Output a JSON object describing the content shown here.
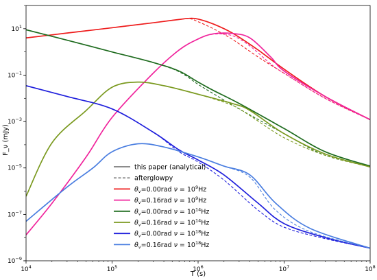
{
  "chart_data": {
    "type": "line",
    "xlabel": "T (s)",
    "ylabel": "F_ν (mJy)",
    "x_scale": "log",
    "y_scale": "log",
    "xlim": [
      10000,
      100000000
    ],
    "ylim": [
      1e-09,
      100
    ],
    "x_ticks": [
      {
        "value": 10000,
        "base": "10",
        "exp": "4"
      },
      {
        "value": 100000,
        "base": "10",
        "exp": "5"
      },
      {
        "value": 1000000,
        "base": "10",
        "exp": "6"
      },
      {
        "value": 10000000,
        "base": "10",
        "exp": "7"
      },
      {
        "value": 100000000,
        "base": "10",
        "exp": "8"
      }
    ],
    "y_ticks": [
      {
        "value": 1e-09,
        "base": "10",
        "exp": "−9"
      },
      {
        "value": 1e-07,
        "base": "10",
        "exp": "−7"
      },
      {
        "value": 1e-05,
        "base": "10",
        "exp": "−5"
      },
      {
        "value": 0.001,
        "base": "10",
        "exp": "−3"
      },
      {
        "value": 0.1,
        "base": "10",
        "exp": "−1"
      },
      {
        "value": 10,
        "base": "10",
        "exp": "1"
      }
    ],
    "grid": false,
    "legend_position": "lower-center",
    "legend_style_entries": [
      {
        "label": "this paper (analytical)",
        "dash": "solid"
      },
      {
        "label": "afterglowpy",
        "dash": "dashed"
      }
    ],
    "series": [
      {
        "name": "θv=0.00rad ν=10^9Hz",
        "legend": {
          "theta": "=0.00rad",
          "nu": "10",
          "nu_exp": "9"
        },
        "color": "#ee1c1c",
        "x": [
          10000,
          30000,
          100000,
          300000,
          600000,
          800000,
          1000000,
          1500000,
          2500000,
          5000000,
          10000000,
          30000000,
          100000000
        ],
        "solid": [
          4.0,
          6.5,
          11,
          18,
          25,
          28,
          26,
          16,
          6.5,
          1.2,
          0.18,
          0.012,
          0.0012
        ],
        "dashed": [
          4.0,
          6.5,
          11,
          18,
          25,
          27,
          20,
          10,
          3.5,
          0.6,
          0.12,
          0.01,
          0.0012
        ]
      },
      {
        "name": "θv=0.16rad ν=10^9Hz",
        "legend": {
          "theta": "=0.16rad",
          "nu": "10",
          "nu_exp": "9"
        },
        "color": "#f0249c",
        "x": [
          10000,
          20000,
          50000,
          100000,
          300000,
          600000,
          1000000,
          1500000,
          2500000,
          4000000,
          7000000,
          10000000,
          30000000,
          100000000
        ],
        "solid": [
          1.3e-08,
          3e-07,
          3e-05,
          0.0015,
          0.12,
          1.2,
          3.6,
          6.0,
          6.2,
          4.0,
          0.6,
          0.15,
          0.012,
          0.0012
        ],
        "dashed": [
          1.3e-08,
          3e-07,
          3e-05,
          0.0015,
          0.12,
          1.2,
          3.6,
          5.8,
          5.0,
          1.8,
          0.3,
          0.12,
          0.01,
          0.0012
        ]
      },
      {
        "name": "θv=0.00rad ν=10^14Hz",
        "legend": {
          "theta": "=0.00rad",
          "nu": "10",
          "nu_exp": "14"
        },
        "color": "#1e6b1e",
        "x": [
          10000,
          30000,
          100000,
          300000,
          600000,
          1000000,
          1500000,
          3000000,
          10000000,
          30000000,
          100000000
        ],
        "solid": [
          9,
          3.2,
          1.0,
          0.35,
          0.15,
          0.05,
          0.022,
          0.006,
          0.0005,
          5e-05,
          1.2e-05
        ],
        "dashed": [
          9,
          3.2,
          1.0,
          0.35,
          0.14,
          0.04,
          0.016,
          0.0035,
          0.0003,
          3.5e-05,
          1.2e-05
        ]
      },
      {
        "name": "θv=0.16rad ν=10^14Hz",
        "legend": {
          "theta": "=0.16rad",
          "nu": "10",
          "nu_exp": "14"
        },
        "color": "#7b9a20",
        "x": [
          10000,
          20000,
          50000,
          100000,
          200000,
          400000,
          1000000,
          2500000,
          4000000,
          10000000,
          30000000,
          100000000
        ],
        "solid": [
          6e-07,
          0.00012,
          0.003,
          0.03,
          0.05,
          0.035,
          0.015,
          0.006,
          0.003,
          0.0003,
          4e-05,
          1.1e-05
        ],
        "dashed": [
          6e-07,
          0.00012,
          0.003,
          0.03,
          0.05,
          0.035,
          0.015,
          0.005,
          0.0018,
          0.0002,
          3.5e-05,
          1.1e-05
        ]
      },
      {
        "name": "θv=0.00rad ν=10^18Hz",
        "legend": {
          "theta": "=0.00rad",
          "nu": "10",
          "nu_exp": "18"
        },
        "color": "#1f1fdc",
        "x": [
          10000,
          30000,
          100000,
          300000,
          600000,
          1000000,
          2000000,
          5000000,
          10000000,
          30000000,
          100000000
        ],
        "solid": [
          0.035,
          0.012,
          0.0035,
          0.00035,
          6e-05,
          2.2e-05,
          5e-06,
          3e-07,
          4e-08,
          1e-08,
          3.5e-09
        ],
        "dashed": [
          0.035,
          0.012,
          0.0035,
          0.00035,
          5e-05,
          1.8e-05,
          3e-06,
          1.5e-07,
          2.8e-08,
          9e-09,
          3.5e-09
        ]
      },
      {
        "name": "θv=0.16rad ν=10^18Hz",
        "legend": {
          "theta": "=0.16rad",
          "nu": "10",
          "nu_exp": "18"
        },
        "color": "#4a7ee0",
        "x": [
          10000,
          30000,
          60000,
          100000,
          200000,
          400000,
          1000000,
          2000000,
          4000000,
          8000000,
          20000000,
          100000000
        ],
        "solid": [
          5e-08,
          1.5e-06,
          1e-05,
          5e-05,
          0.00011,
          8e-05,
          3e-05,
          1.2e-05,
          5e-06,
          3e-07,
          2.5e-08,
          3.5e-09
        ],
        "dashed": [
          5e-08,
          1.5e-06,
          1e-05,
          5e-05,
          0.00011,
          8e-05,
          3e-05,
          1.2e-05,
          4e-06,
          1.5e-07,
          1.8e-08,
          3.5e-09
        ]
      }
    ]
  }
}
